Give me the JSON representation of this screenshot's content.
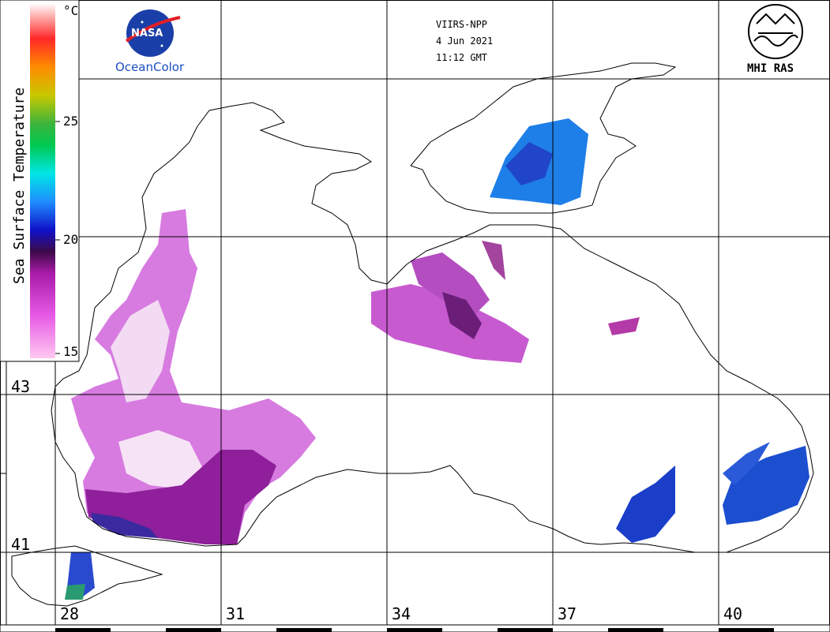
{
  "header": {
    "satellite": "VIIRS-NPP",
    "date": "4 Jun 2021",
    "time": "11:12 GMT"
  },
  "logos": {
    "nasa": "NASA",
    "oceancolor": "OceanColor",
    "mhi": "MHI RAS"
  },
  "colorbar": {
    "title": "Sea Surface Temperature",
    "unit": "°C",
    "ticks": [
      "25",
      "20",
      "15"
    ],
    "min": 15,
    "max": 30,
    "colors": [
      "#ffc8f0",
      "#e65ae6",
      "#a81aa8",
      "#3c0a48",
      "#1010c8",
      "#1e8cff",
      "#00e6e6",
      "#00c850",
      "#3cb43c",
      "#c8c800",
      "#ff8c00",
      "#ff2828",
      "#ffb4b4",
      "#ffffff"
    ]
  },
  "grid": {
    "latitudes": [
      "43",
      "41"
    ],
    "longitudes": [
      "28",
      "31",
      "34",
      "37",
      "40"
    ]
  }
}
